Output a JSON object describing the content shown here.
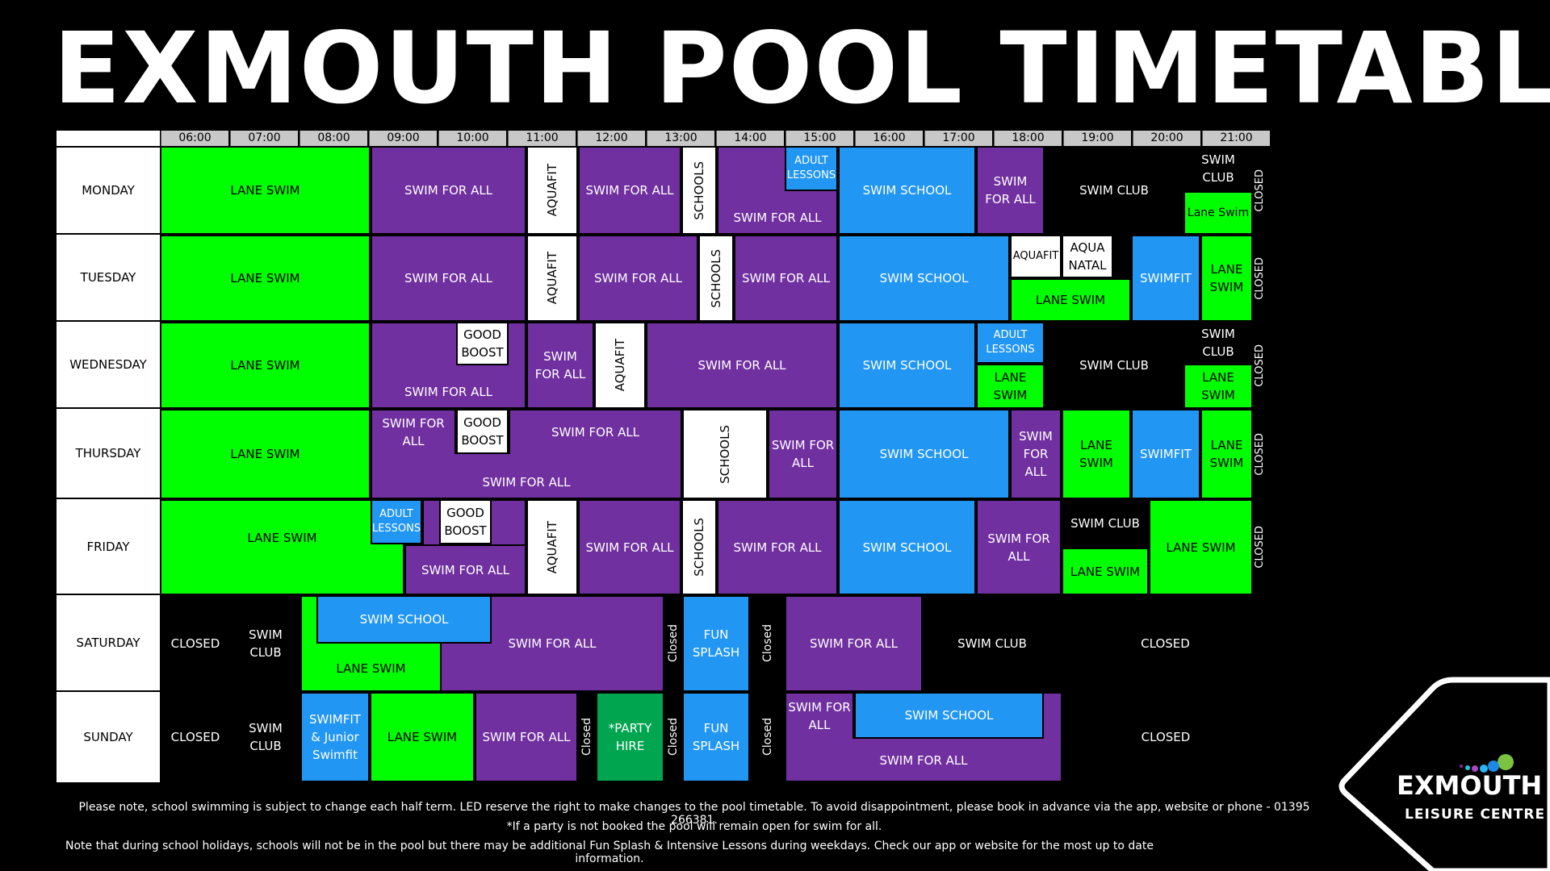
{
  "title": "EXMOUTH POOL TIMETABLE",
  "times": [
    "06:00",
    "07:00",
    "08:00",
    "09:00",
    "10:00",
    "11:00",
    "12:00",
    "13:00",
    "14:00",
    "15:00",
    "16:00",
    "17:00",
    "18:00",
    "19:00",
    "20:00",
    "21:00"
  ],
  "days": [
    "MONDAY",
    "TUESDAY",
    "WEDNESDAY",
    "THURSDAY",
    "FRIDAY",
    "SATURDAY",
    "SUNDAY"
  ],
  "labels": {
    "lane_swim": "LANE SWIM",
    "lane_swim_mixed": "Lane Swim",
    "lane_swim_2line": "LANE SWIM",
    "swim_for_all": "SWIM FOR ALL",
    "aquafit": "AQUAFIT",
    "schools": "SCHOOLS",
    "adult_lessons": "ADULT LESSONS",
    "swim_school": "SWIM SCHOOL",
    "swim_club": "SWIM CLUB",
    "closed_upper": "CLOSED",
    "closed_mixed": "Closed",
    "aqua_natal": "AQUA NATAL",
    "swimfit": "SWIMFIT",
    "good_boost": "GOOD BOOST",
    "fun_splash": "FUN SPLASH",
    "swimfit_junior": "SWIMFIT & Junior Swimfit",
    "party_hire": "*PARTY HIRE"
  },
  "notes": {
    "line1": "Please note, school swimming is subject to change each half term. LED reserve the right to make changes to the pool timetable. To avoid disappointment, please book in advance via the app, website or phone - 01395 266381.",
    "line2": "*If a party is not booked the pool will remain open for swim for all.",
    "line3": "Note that during school holidays, schools will not be in the pool but there may be additional Fun Splash & Intensive Lessons during weekdays. Check our app or website for the most up to date information."
  },
  "logo": {
    "line1": "EXMOUTH",
    "line2": "LEISURE CENTRE"
  },
  "colors": {
    "lane": "#00ff00",
    "purple": "#7030a0",
    "blue": "#2196f3",
    "party": "#00a550"
  }
}
